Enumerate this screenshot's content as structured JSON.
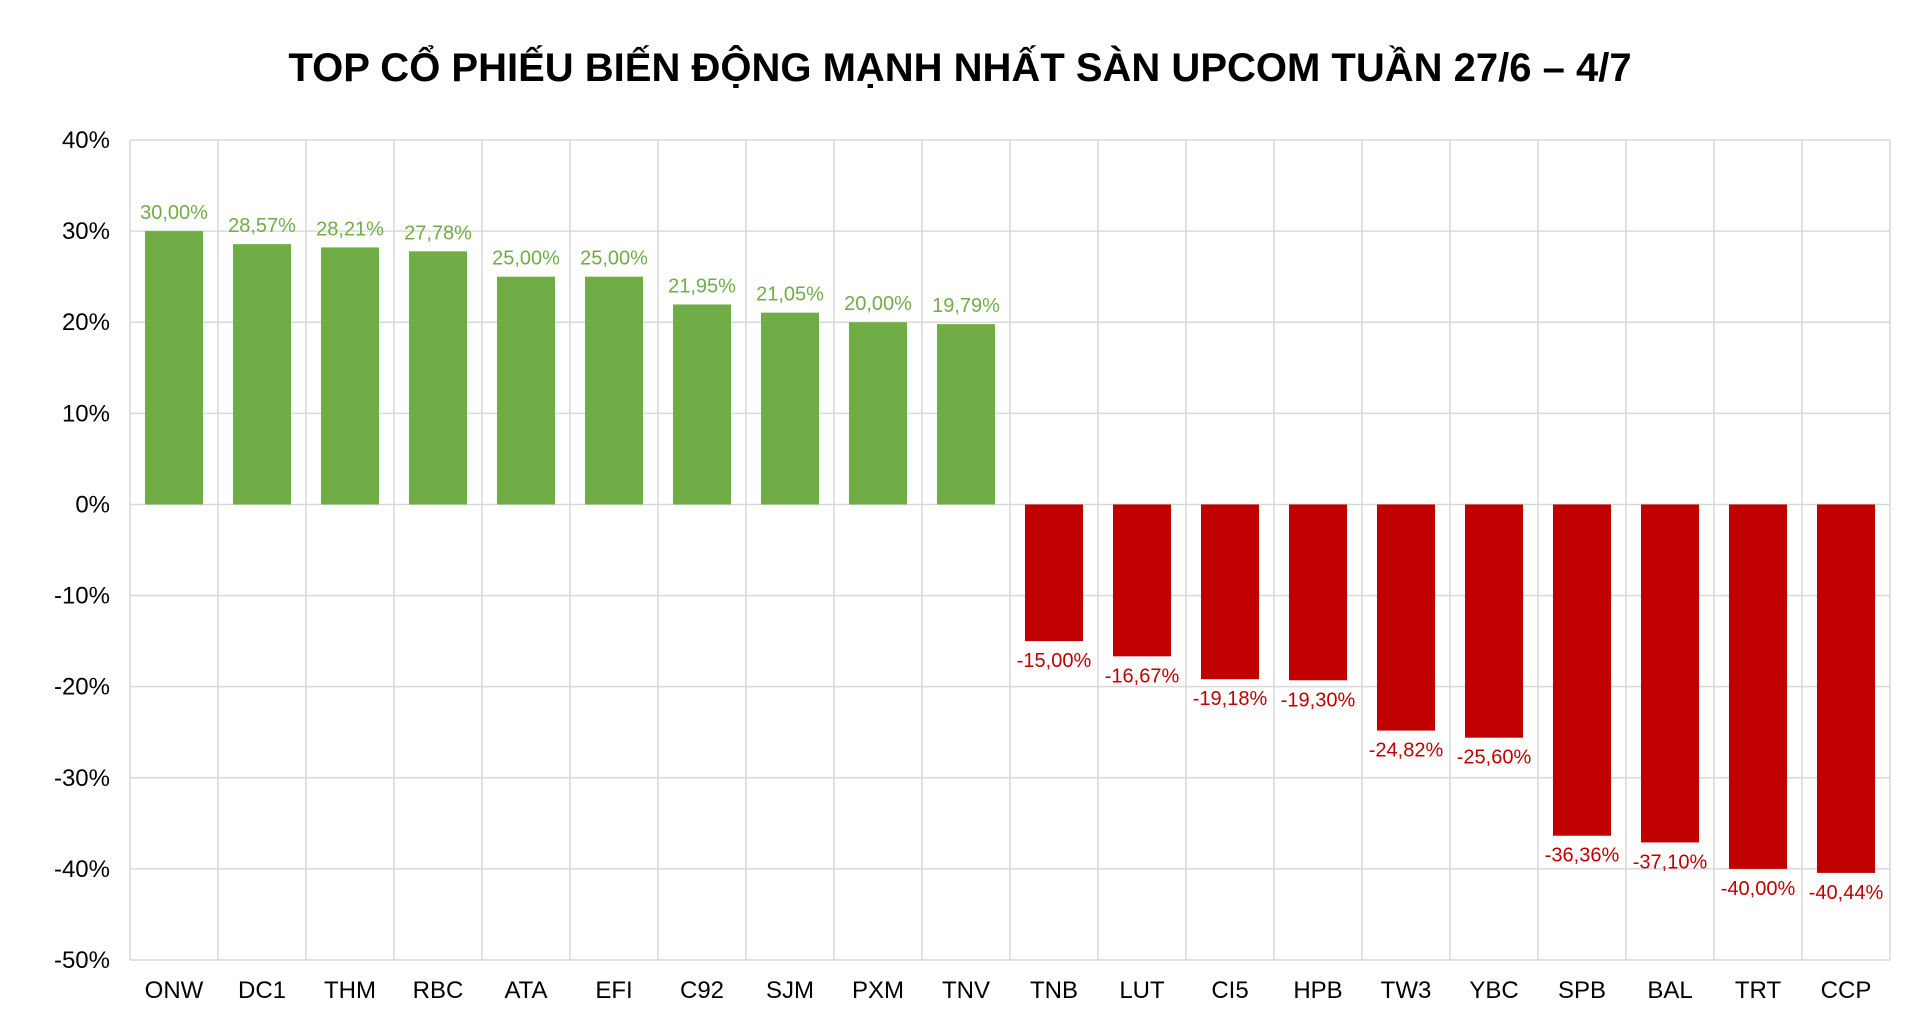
{
  "chart_data": {
    "type": "bar",
    "title": "TOP CỔ PHIẾU BIẾN ĐỘNG MẠNH NHẤT SÀN UPCOM TUẦN 27/6 – 4/7",
    "xlabel": "",
    "ylabel": "",
    "ylim": [
      -50,
      40
    ],
    "yticks": [
      40,
      30,
      20,
      10,
      0,
      -10,
      -20,
      -30,
      -40,
      -50
    ],
    "ytick_labels": [
      "40%",
      "30%",
      "20%",
      "10%",
      "0%",
      "-10%",
      "-20%",
      "-30%",
      "-40%",
      "-50%"
    ],
    "grid": true,
    "legend": "none",
    "colors": {
      "positive": "#70ad47",
      "negative": "#c00000",
      "grid": "#d9d9d9"
    },
    "categories": [
      "ONW",
      "DC1",
      "THM",
      "RBC",
      "ATA",
      "EFI",
      "C92",
      "SJM",
      "PXM",
      "TNV",
      "TNB",
      "LUT",
      "CI5",
      "HPB",
      "TW3",
      "YBC",
      "SPB",
      "BAL",
      "TRT",
      "CCP"
    ],
    "values": [
      30.0,
      28.57,
      28.21,
      27.78,
      25.0,
      25.0,
      21.95,
      21.05,
      20.0,
      19.79,
      -15.0,
      -16.67,
      -19.18,
      -19.3,
      -24.82,
      -25.6,
      -36.36,
      -37.1,
      -40.0,
      -40.44
    ],
    "data_labels": [
      "30,00%",
      "28,57%",
      "28,21%",
      "27,78%",
      "25,00%",
      "25,00%",
      "21,95%",
      "21,05%",
      "20,00%",
      "19,79%",
      "-15,00%",
      "-16,67%",
      "-19,18%",
      "-19,30%",
      "-24,82%",
      "-25,60%",
      "-36,36%",
      "-37,10%",
      "-40,00%",
      "-40,44%"
    ]
  }
}
